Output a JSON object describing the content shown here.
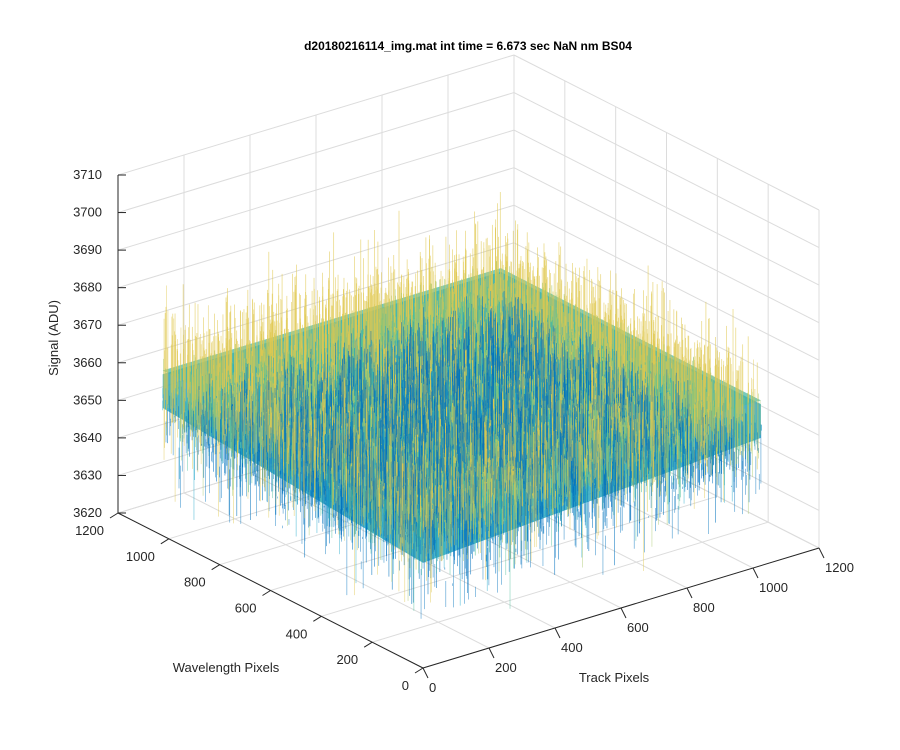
{
  "chart_data": {
    "type": "surface",
    "title": "d20180216114_img.mat int time = 6.673 sec  NaN nm BS04",
    "xlabel": "Track Pixels",
    "ylabel": "Wavelength Pixels",
    "zlabel": "Signal (ADU)",
    "xlim": [
      0,
      1200
    ],
    "ylim": [
      0,
      1200
    ],
    "zlim": [
      3620,
      3710
    ],
    "x_ticks": [
      0,
      200,
      400,
      600,
      800,
      1000,
      1200
    ],
    "y_ticks": [
      0,
      200,
      400,
      600,
      800,
      1000,
      1200
    ],
    "z_ticks": [
      3620,
      3630,
      3640,
      3650,
      3660,
      3670,
      3680,
      3690,
      3700,
      3710
    ],
    "data_extent": {
      "x": [
        0,
        1024
      ],
      "y": [
        0,
        1024
      ]
    },
    "signal_mean": 3660,
    "signal_range": [
      3625,
      3705
    ],
    "colormap": [
      "#0072bd",
      "#1ea6c9",
      "#4dbf9a",
      "#a6c76a",
      "#e0c850"
    ],
    "grid": true,
    "view": "3d-azimuth-37.5-elevation-30"
  }
}
